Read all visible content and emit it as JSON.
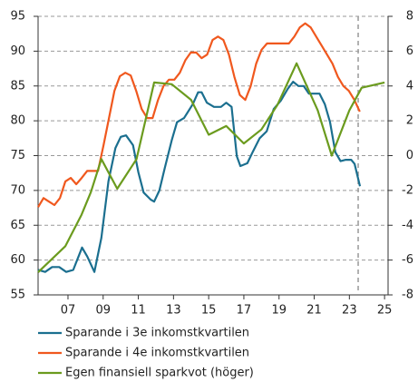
{
  "chart_data": {
    "type": "line",
    "xlim": [
      2005.8,
      2025.7
    ],
    "xticks": [
      {
        "value": 2007.5,
        "label": "07"
      },
      {
        "value": 2009.5,
        "label": "09"
      },
      {
        "value": 2011.5,
        "label": "11"
      },
      {
        "value": 2013.5,
        "label": "13"
      },
      {
        "value": 2015.5,
        "label": "15"
      },
      {
        "value": 2017.5,
        "label": "17"
      },
      {
        "value": 2019.5,
        "label": "19"
      },
      {
        "value": 2021.5,
        "label": "21"
      },
      {
        "value": 2023.5,
        "label": "23"
      },
      {
        "value": 2025.5,
        "label": "25"
      }
    ],
    "ylim": [
      55,
      95
    ],
    "yticks": [
      55,
      60,
      65,
      70,
      75,
      80,
      85,
      90,
      95
    ],
    "y2lim": [
      -8,
      8
    ],
    "y2ticks": [
      -8,
      -6,
      -4,
      -2,
      0,
      2,
      4,
      6,
      8
    ],
    "grid": true,
    "vline": 2024.0,
    "series": [
      {
        "name": "Sparande i 3e inkomstkvartilen",
        "color": "#1b6f8f",
        "x": [
          2005.8,
          2006.2,
          2006.6,
          2007.0,
          2007.4,
          2007.8,
          2008.3,
          2008.6,
          2009.0,
          2009.4,
          2009.8,
          2010.2,
          2010.5,
          2010.8,
          2011.2,
          2011.5,
          2011.8,
          2012.2,
          2012.4,
          2012.7,
          2013.0,
          2013.4,
          2013.7,
          2014.1,
          2014.6,
          2014.9,
          2015.1,
          2015.4,
          2015.8,
          2016.2,
          2016.5,
          2016.8,
          2017.1,
          2017.3,
          2017.7,
          2018.0,
          2018.4,
          2018.8,
          2019.2,
          2019.6,
          2020.0,
          2020.3,
          2020.6,
          2020.9,
          2021.2,
          2021.5,
          2021.8,
          2022.1,
          2022.4,
          2022.7,
          2023.0,
          2023.3,
          2023.6,
          2023.8,
          2024.1
        ],
        "values": [
          58.6,
          58.3,
          59.0,
          59.0,
          58.3,
          58.6,
          61.8,
          60.5,
          58.3,
          63.2,
          71.3,
          76.1,
          77.7,
          77.9,
          76.5,
          72.6,
          69.7,
          68.7,
          68.4,
          70.0,
          73.2,
          77.2,
          79.8,
          80.4,
          82.4,
          84.1,
          84.1,
          82.6,
          82.0,
          82.0,
          82.6,
          82.0,
          74.9,
          73.5,
          73.9,
          75.5,
          77.5,
          78.5,
          81.7,
          82.9,
          84.6,
          85.6,
          85.0,
          85.0,
          83.9,
          83.9,
          83.9,
          82.4,
          79.8,
          75.5,
          74.2,
          74.4,
          74.4,
          73.8,
          70.6
        ]
      },
      {
        "name": "Sparande i 4e inkomstkvartilen",
        "color": "#f0581e",
        "x": [
          2005.8,
          2006.11,
          2006.42,
          2006.73,
          2007.04,
          2007.35,
          2007.66,
          2007.97,
          2008.28,
          2008.59,
          2008.9,
          2009.21,
          2009.52,
          2009.83,
          2010.14,
          2010.45,
          2010.76,
          2011.07,
          2011.38,
          2011.69,
          2012.0,
          2012.31,
          2012.62,
          2012.93,
          2013.24,
          2013.55,
          2013.86,
          2014.17,
          2014.48,
          2014.79,
          2015.1,
          2015.41,
          2015.72,
          2016.03,
          2016.34,
          2016.65,
          2016.96,
          2017.27,
          2017.58,
          2017.89,
          2018.2,
          2018.51,
          2018.82,
          2019.13,
          2019.44,
          2019.75,
          2020.06,
          2020.37,
          2020.68,
          2020.99,
          2021.3,
          2021.61,
          2021.92,
          2022.23,
          2022.54,
          2022.85,
          2023.16,
          2023.47,
          2023.78,
          2024.09
        ],
        "values": [
          67.6,
          68.9,
          68.4,
          67.9,
          68.9,
          71.3,
          71.8,
          70.9,
          71.8,
          72.8,
          72.8,
          72.8,
          76.5,
          80.4,
          84.3,
          86.4,
          86.9,
          86.5,
          84.3,
          81.7,
          80.4,
          80.4,
          83.0,
          85.0,
          85.9,
          85.9,
          86.9,
          88.7,
          89.8,
          89.8,
          89.0,
          89.5,
          91.6,
          92.1,
          91.6,
          89.5,
          86.3,
          83.7,
          83.0,
          85.0,
          88.2,
          90.2,
          91.1,
          91.1,
          91.1,
          91.1,
          91.1,
          92.1,
          93.4,
          94.0,
          93.4,
          92.1,
          90.8,
          89.5,
          88.2,
          86.3,
          85.0,
          84.3,
          83.0,
          81.3
        ]
      },
      {
        "name": "Egen finansiell sparkvot (höger)",
        "color": "#6b9b1e",
        "axis": "y2",
        "x": [
          2005.8,
          2007.35,
          2008.27,
          2008.8,
          2009.4,
          2010.3,
          2011.4,
          2012.4,
          2013.4,
          2014.5,
          2015.5,
          2016.5,
          2017.5,
          2018.5,
          2019.4,
          2020.5,
          2021.7,
          2022.5,
          2023.5,
          2024.2,
          2025.5
        ],
        "values": [
          -6.7,
          -5.2,
          -3.4,
          -2.1,
          -0.2,
          -1.9,
          -0.2,
          4.2,
          4.1,
          3.2,
          1.2,
          1.7,
          0.7,
          1.5,
          2.9,
          5.3,
          2.6,
          0.0,
          2.6,
          3.9,
          4.2
        ]
      }
    ]
  }
}
